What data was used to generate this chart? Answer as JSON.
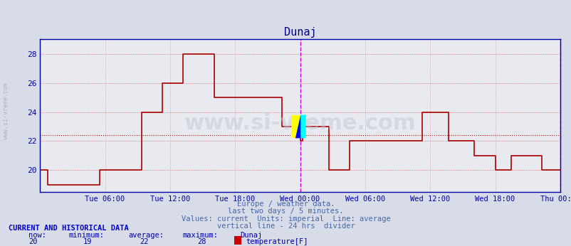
{
  "title": "Dunaj",
  "title_color": "#000080",
  "title_fontsize": 11,
  "bg_color": "#d8dce8",
  "plot_bg_color": "#e8eaf0",
  "line_color": "#aa0000",
  "average_line_color": "#cc0000",
  "average_value": 22.4,
  "vertical_line_color": "#cc00cc",
  "axis_color": "#0000aa",
  "tick_color": "#0000aa",
  "grid_color_h": "#cc4444",
  "grid_color_v": "#cc88aa",
  "ylim": [
    18.5,
    29
  ],
  "yticks": [
    20,
    22,
    24,
    26,
    28
  ],
  "ylabel_color": "#0000aa",
  "bottom_text_color": "#4466aa",
  "bottom_texts": [
    "Europe / weather data.",
    "last two days / 5 minutes.",
    "Values: current  Units: imperial  Line: average",
    "vertical line - 24 hrs  divider"
  ],
  "footer_title_color": "#0000cc",
  "footer_data_color": "#0000aa",
  "watermark_text": "www.si-vreme.com",
  "watermark_color": "#b0b8d0",
  "now": 20,
  "minimum": 19,
  "average": 22,
  "maximum": 28,
  "legend_label": "temperature[F]",
  "legend_color": "#cc0000",
  "x_tick_labels": [
    "Tue 06:00",
    "Tue 12:00",
    "Tue 18:00",
    "Wed 00:00",
    "Wed 06:00",
    "Wed 12:00",
    "Wed 18:00",
    "Thu 00:00"
  ],
  "x_tick_positions": [
    0.125,
    0.25,
    0.375,
    0.5,
    0.625,
    0.75,
    0.875,
    1.0
  ],
  "data_x": [
    0,
    0.01,
    0.015,
    0.02,
    0.11,
    0.115,
    0.12,
    0.19,
    0.195,
    0.23,
    0.235,
    0.27,
    0.275,
    0.33,
    0.335,
    0.38,
    0.385,
    0.42,
    0.425,
    0.46,
    0.465,
    0.49,
    0.495,
    0.5,
    0.505,
    0.55,
    0.555,
    0.59,
    0.595,
    0.63,
    0.635,
    0.66,
    0.665,
    0.73,
    0.735,
    0.78,
    0.785,
    0.83,
    0.835,
    0.87,
    0.875,
    0.9,
    0.905,
    0.96,
    0.965,
    1.0
  ],
  "data_y": [
    20,
    20,
    19,
    19,
    19,
    20,
    20,
    20,
    24,
    24,
    26,
    26,
    28,
    28,
    25,
    25,
    25,
    25,
    25,
    25,
    23,
    23,
    23,
    22,
    23,
    23,
    20,
    20,
    22,
    22,
    22,
    22,
    22,
    22,
    24,
    24,
    22,
    22,
    21,
    21,
    20,
    20,
    21,
    21,
    20,
    20
  ]
}
